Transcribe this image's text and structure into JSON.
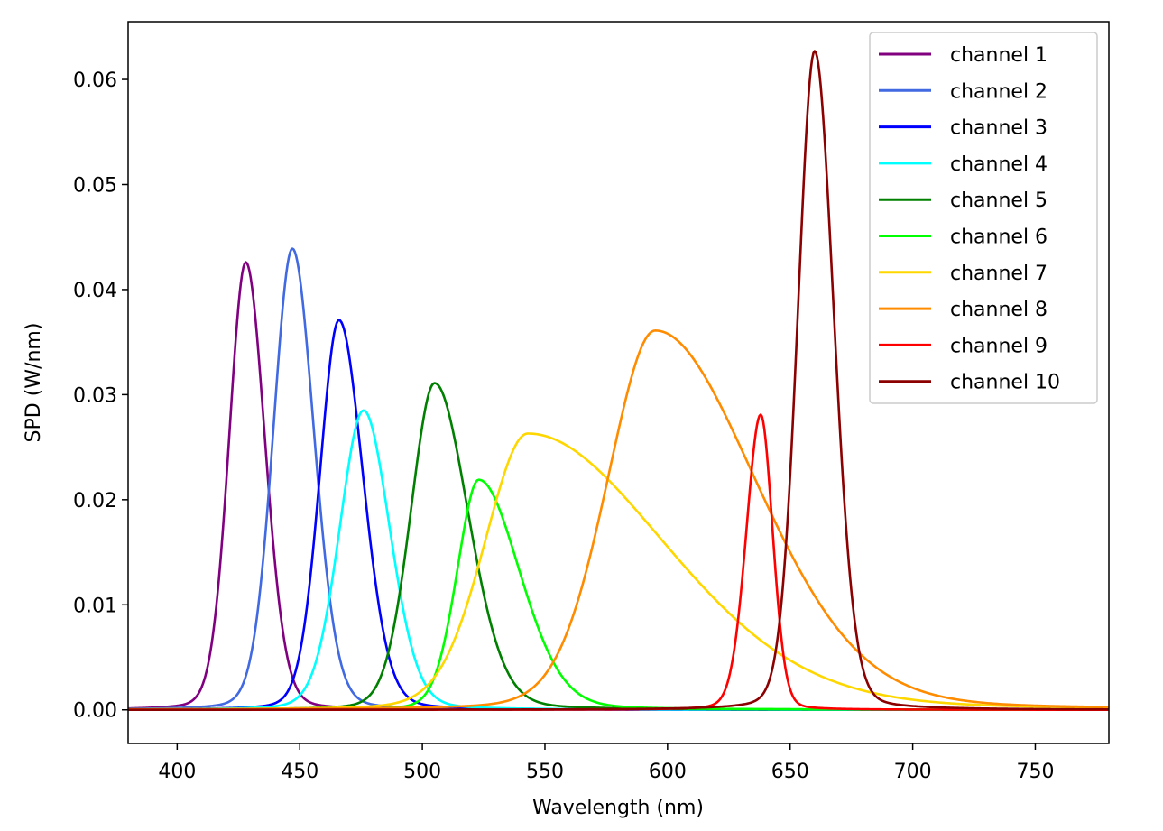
{
  "chart_data": {
    "type": "line",
    "title": "",
    "xlabel": "Wavelength (nm)",
    "ylabel": "SPD (W/nm)",
    "xlim": [
      380,
      780
    ],
    "ylim": [
      -0.0032,
      0.0655
    ],
    "xticks": [
      400,
      450,
      500,
      550,
      600,
      650,
      700,
      750
    ],
    "yticks": [
      0.0,
      0.01,
      0.02,
      0.03,
      0.04,
      0.05,
      0.06
    ],
    "ytick_labels": [
      "0.00",
      "0.01",
      "0.02",
      "0.03",
      "0.04",
      "0.05",
      "0.06"
    ],
    "grid": false,
    "legend_position": "top-right",
    "series": [
      {
        "name": "channel 1",
        "color": "#800080",
        "peak_x": 428,
        "peak_y": 0.0426,
        "width_left": 7,
        "width_right": 8
      },
      {
        "name": "channel 2",
        "color": "#4169e1",
        "peak_x": 447,
        "peak_y": 0.0439,
        "width_left": 8,
        "width_right": 9
      },
      {
        "name": "channel 3",
        "color": "#0000ff",
        "peak_x": 466,
        "peak_y": 0.0371,
        "width_left": 8,
        "width_right": 10
      },
      {
        "name": "channel 4",
        "color": "#00ffff",
        "peak_x": 476,
        "peak_y": 0.0285,
        "width_left": 10,
        "width_right": 11
      },
      {
        "name": "channel 5",
        "color": "#008000",
        "peak_x": 505,
        "peak_y": 0.0311,
        "width_left": 10,
        "width_right": 14
      },
      {
        "name": "channel 6",
        "color": "#00ff00",
        "peak_x": 523,
        "peak_y": 0.0219,
        "width_left": 9,
        "width_right": 17
      },
      {
        "name": "channel 7",
        "color": "#ffd700",
        "peak_x": 543,
        "peak_y": 0.0263,
        "width_left": 18,
        "width_right": 57
      },
      {
        "name": "channel 8",
        "color": "#ff8c00",
        "peak_x": 595,
        "peak_y": 0.0361,
        "width_left": 20,
        "width_right": 42
      },
      {
        "name": "channel 9",
        "color": "#ff0000",
        "peak_x": 638,
        "peak_y": 0.0281,
        "width_left": 6,
        "width_right": 5
      },
      {
        "name": "channel 10",
        "color": "#8b0000",
        "peak_x": 660,
        "peak_y": 0.0627,
        "width_left": 7,
        "width_right": 8
      }
    ]
  }
}
